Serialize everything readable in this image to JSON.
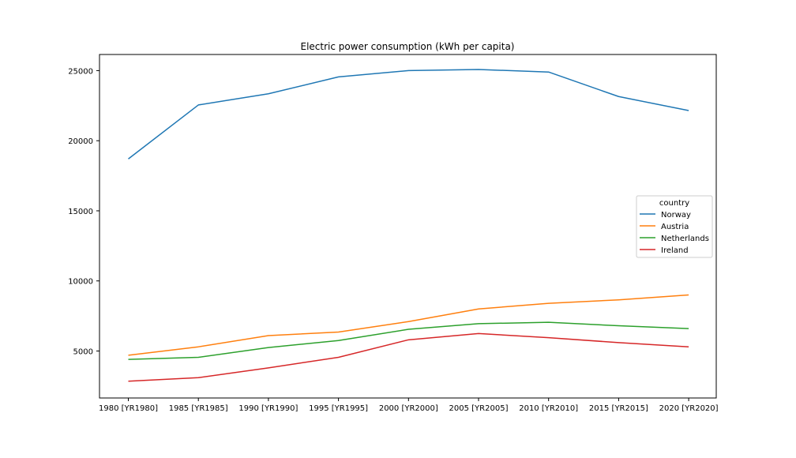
{
  "chart_data": {
    "type": "line",
    "title": "Electric power consumption (kWh per capita)",
    "xlabel": "",
    "ylabel": "",
    "categories": [
      "1980 [YR1980]",
      "1985 [YR1985]",
      "1990 [YR1990]",
      "1995 [YR1995]",
      "2000 [YR2000]",
      "2005 [YR2005]",
      "2010 [YR2010]",
      "2015 [YR2015]",
      "2020 [YR2020]"
    ],
    "yticks": [
      "5000",
      "10000",
      "15000",
      "20000",
      "25000"
    ],
    "ylim": [
      1650,
      26150
    ],
    "grid": false,
    "legend": {
      "title": "country",
      "placement": "right"
    },
    "series": [
      {
        "name": "Norway",
        "color": "#1f77b4",
        "values": [
          18700,
          22550,
          23350,
          24550,
          25000,
          25080,
          24900,
          23150,
          22150
        ]
      },
      {
        "name": "Austria",
        "color": "#ff7f0e",
        "values": [
          4700,
          5300,
          6100,
          6350,
          7100,
          8000,
          8400,
          8650,
          9000
        ]
      },
      {
        "name": "Netherlands",
        "color": "#2ca02c",
        "values": [
          4400,
          4550,
          5250,
          5750,
          6550,
          6950,
          7050,
          6800,
          6600
        ]
      },
      {
        "name": "Ireland",
        "color": "#d62728",
        "values": [
          2850,
          3100,
          3800,
          4550,
          5800,
          6250,
          5950,
          5600,
          5300
        ]
      }
    ]
  }
}
